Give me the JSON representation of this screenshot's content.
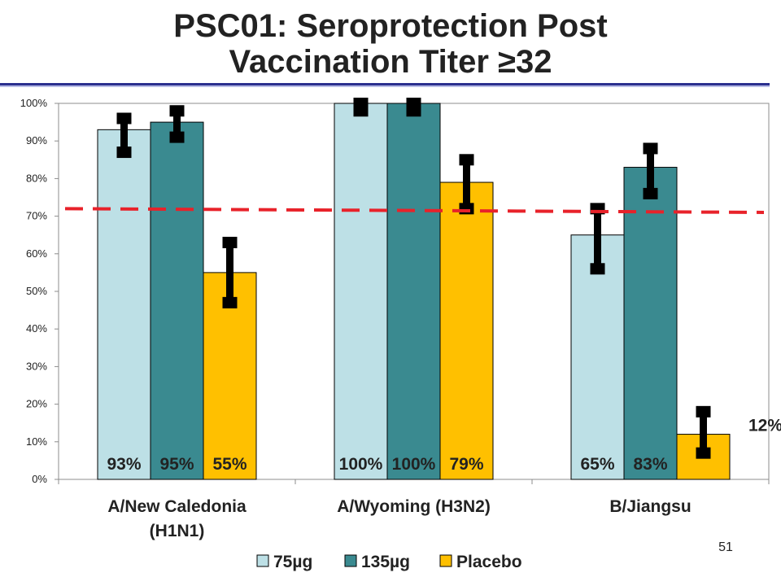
{
  "title_line1": "PSC01: Seroprotection Post",
  "title_line2": "Vaccination Titer ≥32",
  "slide_number": "51",
  "chart_data": {
    "type": "bar",
    "categories": [
      "A/New Caledonia (H1N1)",
      "A/Wyoming (H3N2)",
      "B/Jiangsu"
    ],
    "category_label_lines": [
      [
        "A/New Caledonia",
        "(H1N1)"
      ],
      [
        "A/Wyoming (H3N2)"
      ],
      [
        "B/Jiangsu"
      ]
    ],
    "series": [
      {
        "name": "75µg",
        "color": "#bde0e6",
        "values": [
          93,
          100,
          65
        ],
        "error_low": [
          87,
          98,
          56
        ],
        "error_high": [
          96,
          100,
          72
        ],
        "labels": [
          "93%",
          "100%",
          "65%"
        ]
      },
      {
        "name": "135µg",
        "color": "#3a8a90",
        "values": [
          95,
          100,
          83
        ],
        "error_low": [
          91,
          98,
          76
        ],
        "error_high": [
          98,
          100,
          88
        ],
        "labels": [
          "95%",
          "100%",
          "83%"
        ]
      },
      {
        "name": "Placebo",
        "color": "#ffc000",
        "values": [
          55,
          79,
          12
        ],
        "error_low": [
          47,
          72,
          7
        ],
        "error_high": [
          63,
          85,
          18
        ],
        "labels": [
          "55%",
          "79%",
          "12%"
        ]
      }
    ],
    "y_ticks": [
      "0%",
      "10%",
      "20%",
      "30%",
      "40%",
      "50%",
      "60%",
      "70%",
      "80%",
      "90%",
      "100%"
    ],
    "ylim": [
      0,
      100
    ],
    "reference_line": {
      "start": 72,
      "end": 71,
      "color": "#e8222a",
      "style": "dashed"
    },
    "legend_position": "bottom",
    "grid": false
  }
}
